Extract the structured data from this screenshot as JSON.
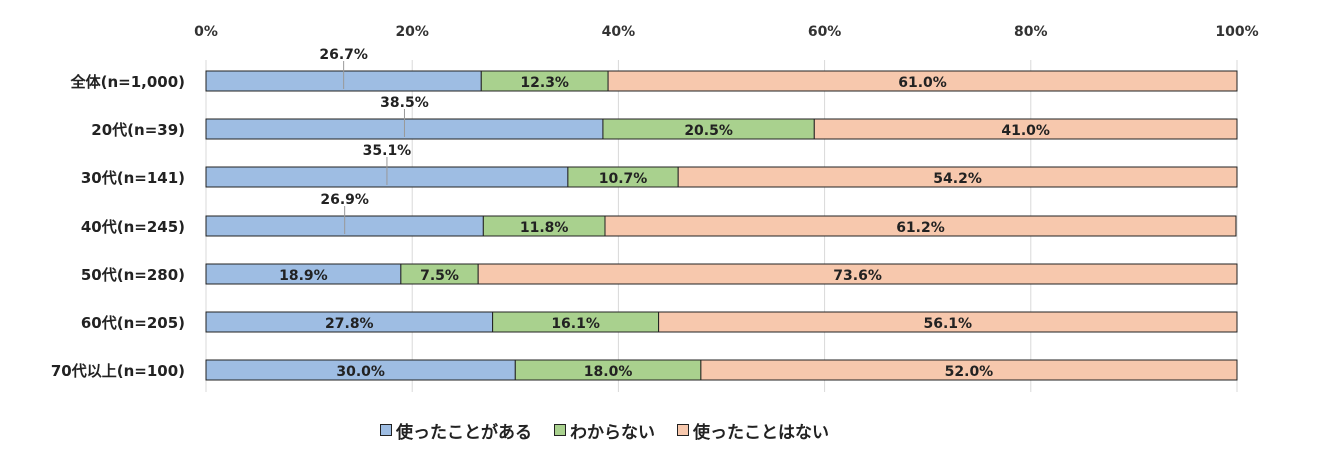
{
  "chart_data": {
    "type": "bar",
    "orientation": "horizontal",
    "stacked": "percent",
    "categories": [
      "全体(n=1,000)",
      "20代(n=39)",
      "30代(n=141)",
      "40代(n=245)",
      "50代(n=280)",
      "60代(n=205)",
      "70代以上(n=100)"
    ],
    "series": [
      {
        "name": "使ったことがある",
        "color": "#9ebde3",
        "values": [
          26.7,
          38.5,
          35.1,
          26.9,
          18.9,
          27.8,
          30.0
        ],
        "labels": [
          "26.7%",
          "38.5%",
          "35.1%",
          "26.9%",
          "18.9%",
          "27.8%",
          "30.0%"
        ]
      },
      {
        "name": "わからない",
        "color": "#a9d18e",
        "values": [
          12.3,
          20.5,
          10.7,
          11.8,
          7.5,
          16.1,
          18.0
        ],
        "labels": [
          "12.3%",
          "20.5%",
          "10.7%",
          "11.8%",
          "7.5%",
          "16.1%",
          "18.0%"
        ]
      },
      {
        "name": "使ったことはない",
        "color": "#f7c8ad",
        "values": [
          61.0,
          41.0,
          54.2,
          61.2,
          73.6,
          56.1,
          52.0
        ],
        "labels": [
          "61.0%",
          "41.0%",
          "54.2%",
          "61.2%",
          "73.6%",
          "56.1%",
          "52.0%"
        ]
      }
    ],
    "xlim": [
      0,
      100
    ],
    "x_ticks": [
      "0%",
      "20%",
      "40%",
      "60%",
      "80%",
      "100%"
    ],
    "first_series_label_above": [
      true,
      true,
      true,
      true,
      false,
      false,
      false
    ],
    "grid": true,
    "legend_position": "bottom"
  }
}
